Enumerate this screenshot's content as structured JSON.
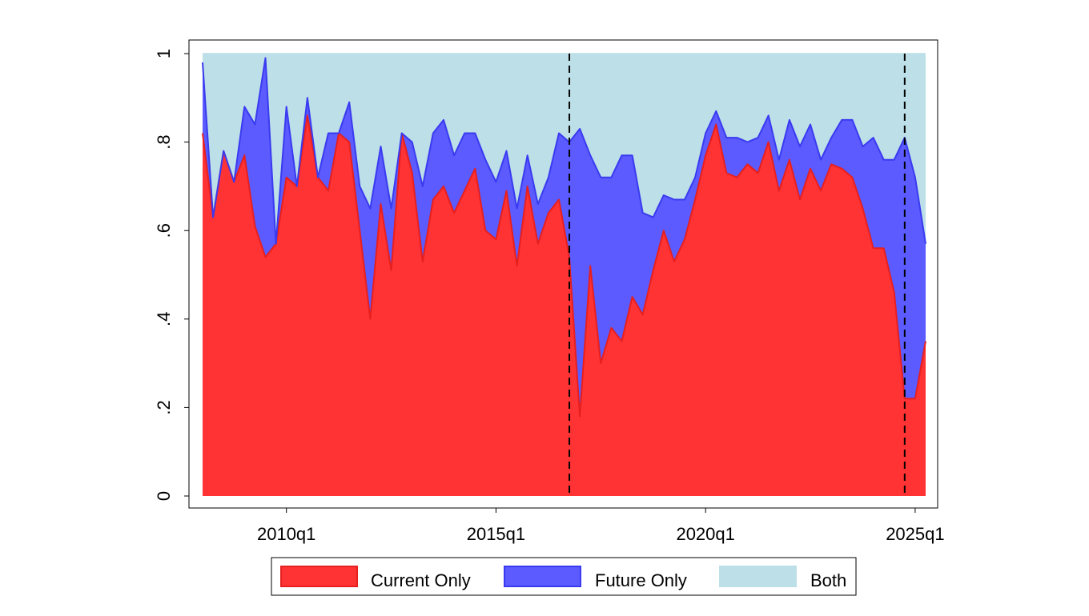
{
  "colors": {
    "current_only": "#ff3333",
    "future_only": "#5b5bff",
    "both": "#bcdfe8",
    "current_line": "#e61f1f",
    "future_line": "#3a3af0",
    "event_line": "#000000"
  },
  "chart_data": {
    "type": "area",
    "stacked": true,
    "x_unit": "quarter",
    "xlim": [
      "2008q1",
      "2025q2"
    ],
    "ylim": [
      0,
      1
    ],
    "x_ticks": [
      "2010q1",
      "2015q1",
      "2020q1",
      "2025q1"
    ],
    "y_ticks": [
      "0",
      ".2",
      ".4",
      ".6",
      ".8",
      "1"
    ],
    "y_tick_values": [
      0,
      0.2,
      0.4,
      0.6,
      0.8,
      1
    ],
    "grid": false,
    "legend_position": "bottom",
    "vertical_lines": [
      "2016q4",
      "2024q4"
    ],
    "x": [
      "2008q1",
      "2008q2",
      "2008q3",
      "2008q4",
      "2009q1",
      "2009q2",
      "2009q3",
      "2009q4",
      "2010q1",
      "2010q2",
      "2010q3",
      "2010q4",
      "2011q1",
      "2011q2",
      "2011q3",
      "2011q4",
      "2012q1",
      "2012q2",
      "2012q3",
      "2012q4",
      "2013q1",
      "2013q2",
      "2013q3",
      "2013q4",
      "2014q1",
      "2014q2",
      "2014q3",
      "2014q4",
      "2015q1",
      "2015q2",
      "2015q3",
      "2015q4",
      "2016q1",
      "2016q2",
      "2016q3",
      "2016q4",
      "2017q1",
      "2017q2",
      "2017q3",
      "2017q4",
      "2018q1",
      "2018q2",
      "2018q3",
      "2018q4",
      "2019q1",
      "2019q2",
      "2019q3",
      "2019q4",
      "2020q1",
      "2020q2",
      "2020q3",
      "2020q4",
      "2021q1",
      "2021q2",
      "2021q3",
      "2021q4",
      "2022q1",
      "2022q2",
      "2022q3",
      "2022q4",
      "2023q1",
      "2023q2",
      "2023q3",
      "2023q4",
      "2024q1",
      "2024q2",
      "2024q3",
      "2024q4",
      "2025q1",
      "2025q2"
    ],
    "series": [
      {
        "name": "Current Only",
        "values": [
          0.82,
          0.63,
          0.78,
          0.71,
          0.77,
          0.61,
          0.54,
          0.57,
          0.72,
          0.7,
          0.86,
          0.72,
          0.69,
          0.82,
          0.8,
          0.6,
          0.4,
          0.66,
          0.51,
          0.82,
          0.73,
          0.53,
          0.67,
          0.7,
          0.64,
          0.69,
          0.74,
          0.6,
          0.58,
          0.69,
          0.52,
          0.7,
          0.57,
          0.64,
          0.67,
          0.54,
          0.18,
          0.52,
          0.3,
          0.38,
          0.35,
          0.45,
          0.41,
          0.51,
          0.6,
          0.53,
          0.58,
          0.67,
          0.77,
          0.84,
          0.73,
          0.72,
          0.75,
          0.73,
          0.8,
          0.69,
          0.76,
          0.67,
          0.74,
          0.69,
          0.75,
          0.74,
          0.72,
          0.65,
          0.56,
          0.56,
          0.46,
          0.22,
          0.22,
          0.35
        ]
      },
      {
        "name": "Future Only",
        "values": [
          0.16,
          0.0,
          0.0,
          0.0,
          0.11,
          0.23,
          0.45,
          0.0,
          0.16,
          0.0,
          0.04,
          0.0,
          0.13,
          0.0,
          0.09,
          0.1,
          0.25,
          0.13,
          0.14,
          0.0,
          0.07,
          0.17,
          0.15,
          0.15,
          0.13,
          0.13,
          0.08,
          0.16,
          0.13,
          0.09,
          0.13,
          0.07,
          0.09,
          0.08,
          0.15,
          0.26,
          0.65,
          0.25,
          0.42,
          0.34,
          0.42,
          0.32,
          0.23,
          0.12,
          0.08,
          0.14,
          0.09,
          0.05,
          0.05,
          0.03,
          0.08,
          0.09,
          0.05,
          0.08,
          0.06,
          0.07,
          0.09,
          0.12,
          0.1,
          0.07,
          0.06,
          0.11,
          0.13,
          0.14,
          0.25,
          0.2,
          0.3,
          0.59,
          0.5,
          0.22
        ]
      },
      {
        "name": "Both",
        "values": [
          0.02,
          0.37,
          0.22,
          0.29,
          0.12,
          0.16,
          0.01,
          0.43,
          0.12,
          0.3,
          0.1,
          0.28,
          0.18,
          0.18,
          0.11,
          0.3,
          0.35,
          0.21,
          0.35,
          0.18,
          0.2,
          0.3,
          0.18,
          0.15,
          0.23,
          0.18,
          0.18,
          0.24,
          0.29,
          0.22,
          0.35,
          0.23,
          0.34,
          0.28,
          0.18,
          0.2,
          0.17,
          0.23,
          0.28,
          0.28,
          0.23,
          0.23,
          0.36,
          0.37,
          0.32,
          0.33,
          0.33,
          0.28,
          0.18,
          0.13,
          0.19,
          0.19,
          0.2,
          0.19,
          0.14,
          0.24,
          0.15,
          0.21,
          0.16,
          0.24,
          0.19,
          0.15,
          0.15,
          0.21,
          0.19,
          0.24,
          0.24,
          0.19,
          0.28,
          0.43
        ]
      }
    ]
  }
}
